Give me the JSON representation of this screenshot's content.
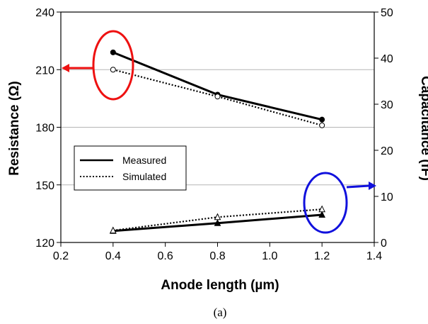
{
  "chart_data": {
    "type": "line",
    "xlabel": "Anode length (µm)",
    "ylabel_left": "Resistance (Ω)",
    "ylabel_right": "Capacitance (fF)",
    "caption": "(a)",
    "xlim": [
      0.2,
      1.4
    ],
    "xticks": [
      "0.2",
      "0.4",
      "0.6",
      "0.8",
      "1.0",
      "1.2",
      "1.4"
    ],
    "ylim_left": [
      120,
      240
    ],
    "yticks_left": [
      "120",
      "150",
      "180",
      "210",
      "240"
    ],
    "ylim_right": [
      0,
      50
    ],
    "yticks_right": [
      "0",
      "10",
      "20",
      "30",
      "40",
      "50"
    ],
    "grid": "horizontal",
    "legend": {
      "placement": "center-left",
      "entries": [
        "Measured",
        "Simulated"
      ]
    },
    "series": [
      {
        "name": "Measured",
        "quantity": "resistance",
        "axis": "left",
        "style": "solid",
        "marker": "filled-circle",
        "x": [
          0.4,
          0.8,
          1.2
        ],
        "y": [
          219,
          197,
          184
        ]
      },
      {
        "name": "Simulated",
        "quantity": "resistance",
        "axis": "left",
        "style": "dotted",
        "marker": "open-circle",
        "x": [
          0.4,
          0.8,
          1.2
        ],
        "y": [
          210,
          196,
          181
        ]
      },
      {
        "name": "Measured",
        "quantity": "capacitance",
        "axis": "right",
        "style": "solid",
        "marker": "filled-triangle",
        "x": [
          0.4,
          0.8,
          1.2
        ],
        "y": [
          2.5,
          4.2,
          6.0
        ]
      },
      {
        "name": "Simulated",
        "quantity": "capacitance",
        "axis": "right",
        "style": "dotted",
        "marker": "open-triangle",
        "x": [
          0.4,
          0.8,
          1.2
        ],
        "y": [
          2.6,
          5.5,
          7.2
        ]
      }
    ],
    "annotations": [
      {
        "shape": "ellipse",
        "color": "#ee1111",
        "target": "left axis (resistance)",
        "arrow": "left"
      },
      {
        "shape": "ellipse",
        "color": "#1111dd",
        "target": "right axis (capacitance)",
        "arrow": "right"
      }
    ]
  }
}
